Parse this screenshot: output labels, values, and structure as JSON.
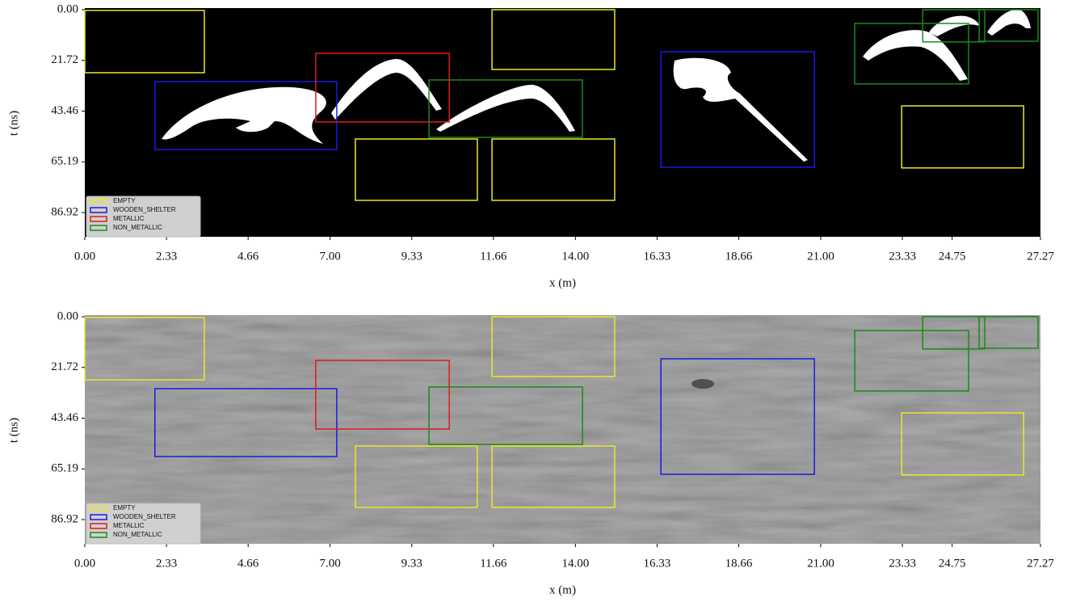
{
  "chart_data": [
    {
      "type": "boxes",
      "x_label": "x (m)",
      "y_label": "t (ns)",
      "xlim": [
        0,
        27.27
      ],
      "ylim": [
        0,
        97.3
      ],
      "xticks": [
        {
          "value": 0,
          "label": "0.00"
        },
        2.33,
        4.66,
        {
          "value": 7,
          "label": "7.00"
        },
        9.33,
        11.66,
        {
          "value": 14,
          "label": "14.00"
        },
        16.33,
        18.66,
        {
          "value": 21,
          "label": "21.00"
        },
        23.33,
        24.75,
        27.27
      ],
      "yticks": [
        {
          "value": 0,
          "label": "0.00"
        },
        21.72,
        43.46,
        65.19,
        86.92
      ],
      "legend": "lower left",
      "series": [
        {
          "name": "EMPTY",
          "color": "#e8e82a",
          "boxes": [
            [
              0,
              3.41,
              0.3,
              27.0
            ],
            [
              7.72,
              11.2,
              55.4,
              81.7
            ],
            [
              11.62,
              15.12,
              55.4,
              81.7
            ],
            [
              11.62,
              15.12,
              0,
              25.6
            ],
            [
              23.31,
              26.79,
              41.2,
              67.8
            ]
          ]
        },
        {
          "name": "WOODEN_SHELTER",
          "color": "#1a1ae0",
          "boxes": [
            [
              2.0,
              7.19,
              30.8,
              59.9
            ],
            [
              16.44,
              20.82,
              18.0,
              67.5
            ]
          ]
        },
        {
          "name": "METALLIC",
          "color": "#e01a1a",
          "boxes": [
            [
              6.59,
              10.4,
              18.7,
              48.1
            ]
          ]
        },
        {
          "name": "NON_METALLIC",
          "color": "#1a8a1a",
          "boxes": [
            [
              9.82,
              14.2,
              30.1,
              54.7
            ],
            [
              21.97,
              25.22,
              5.9,
              31.8
            ],
            [
              23.91,
              25.68,
              0,
              13.8
            ],
            [
              25.52,
              27.2,
              0,
              13.5
            ]
          ]
        }
      ]
    },
    {
      "type": "boxes",
      "x_label": "x (m)",
      "y_label": "t (ns)",
      "xlim": [
        0,
        27.27
      ],
      "ylim": [
        0,
        97.3
      ],
      "xticks": [
        {
          "value": 0,
          "label": "0.00"
        },
        2.33,
        4.66,
        {
          "value": 7,
          "label": "7.00"
        },
        9.33,
        11.66,
        {
          "value": 14,
          "label": "14.00"
        },
        16.33,
        18.66,
        {
          "value": 21,
          "label": "21.00"
        },
        23.33,
        24.75,
        27.27
      ],
      "yticks": [
        {
          "value": 0,
          "label": "0.00"
        },
        21.72,
        43.46,
        65.19,
        86.92
      ],
      "legend": "lower left",
      "series": [
        {
          "name": "EMPTY",
          "color": "#e8e82a",
          "boxes": [
            [
              0,
              3.41,
              0.3,
              27.0
            ],
            [
              7.72,
              11.2,
              55.4,
              81.7
            ],
            [
              11.62,
              15.12,
              55.4,
              81.7
            ],
            [
              11.62,
              15.12,
              0,
              25.6
            ],
            [
              23.31,
              26.79,
              41.2,
              67.8
            ]
          ]
        },
        {
          "name": "WOODEN_SHELTER",
          "color": "#1a1ae0",
          "boxes": [
            [
              2.0,
              7.19,
              30.8,
              59.9
            ],
            [
              16.44,
              20.82,
              18.0,
              67.5
            ]
          ]
        },
        {
          "name": "METALLIC",
          "color": "#e01a1a",
          "boxes": [
            [
              6.59,
              10.4,
              18.7,
              48.1
            ]
          ]
        },
        {
          "name": "NON_METALLIC",
          "color": "#1a8a1a",
          "boxes": [
            [
              9.82,
              14.2,
              30.1,
              54.7
            ],
            [
              21.97,
              25.22,
              5.9,
              31.8
            ],
            [
              23.91,
              25.68,
              0,
              13.8
            ],
            [
              25.52,
              27.2,
              0,
              13.5
            ]
          ]
        }
      ]
    }
  ]
}
